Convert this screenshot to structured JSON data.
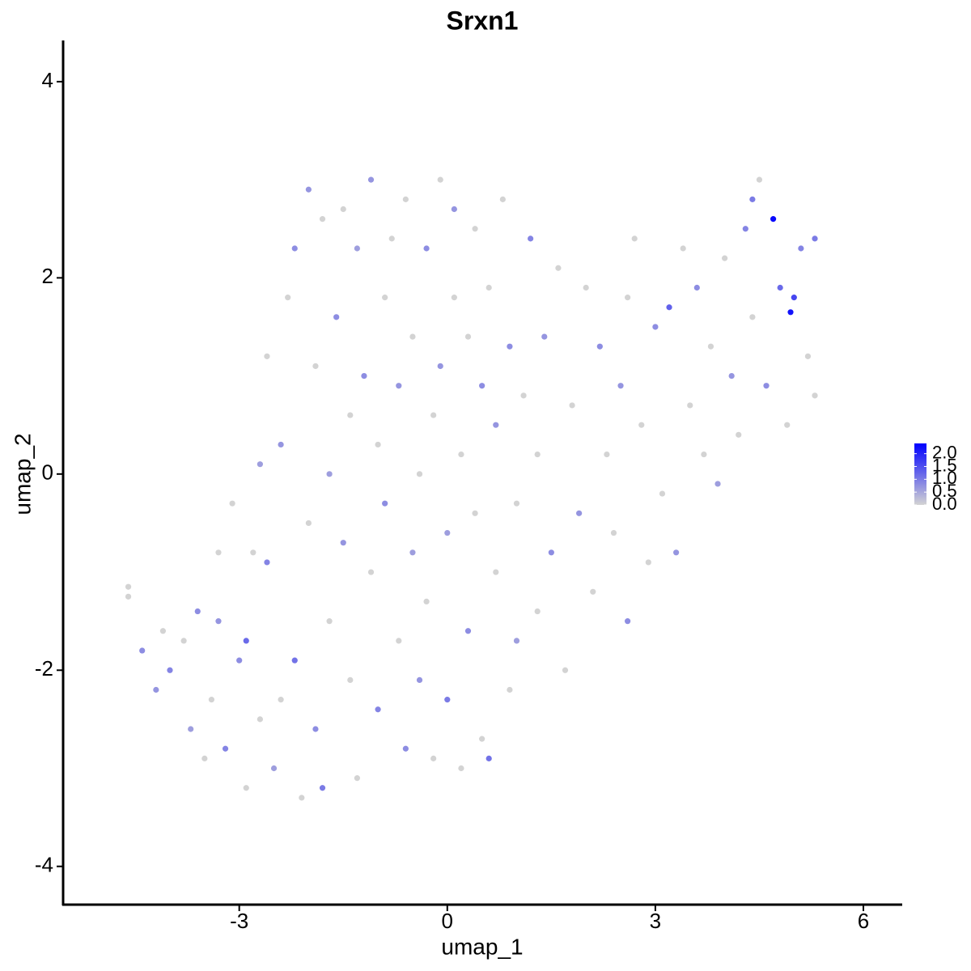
{
  "chart_data": {
    "type": "scatter",
    "title": "Srxn1",
    "xlabel": "umap_1",
    "ylabel": "umap_2",
    "xlim": [
      -5.54,
      6.56
    ],
    "ylim": [
      -4.39,
      4.42
    ],
    "xticks": [
      -3,
      0,
      3,
      6
    ],
    "yticks": [
      -4,
      -2,
      0,
      2,
      4
    ],
    "color_scale": {
      "low": "#d3d3d3",
      "high": "#0000ff",
      "limits": [
        0,
        2.4
      ],
      "ticks": [
        {
          "value": 0,
          "label": "0.0"
        },
        {
          "value": 0.5,
          "label": "0.5"
        },
        {
          "value": 1,
          "label": "1.0"
        },
        {
          "value": 1.5,
          "label": "1.5"
        },
        {
          "value": 2,
          "label": "2.0"
        }
      ]
    },
    "x": [
      -4.6,
      -4.6,
      -4.4,
      -4.2,
      -4.0,
      -3.8,
      -3.7,
      -3.6,
      -3.5,
      -3.4,
      -3.3,
      -3.2,
      -3.1,
      -3.0,
      -2.9,
      -2.9,
      -2.8,
      -2.7,
      -2.6,
      -2.6,
      -2.5,
      -2.4,
      -2.4,
      -2.3,
      -2.2,
      -2.2,
      -2.1,
      -2.0,
      -2.0,
      -1.9,
      -1.9,
      -1.8,
      -1.8,
      -1.7,
      -1.7,
      -1.6,
      -1.5,
      -1.5,
      -1.4,
      -1.4,
      -1.3,
      -1.3,
      -1.2,
      -1.1,
      -1.1,
      -1.0,
      -1.0,
      -0.9,
      -0.9,
      -0.8,
      -0.7,
      -0.7,
      -0.6,
      -0.6,
      -0.5,
      -0.5,
      -0.4,
      -0.4,
      -0.3,
      -0.3,
      -0.2,
      -0.2,
      -0.1,
      -0.1,
      0.0,
      0.0,
      0.1,
      0.1,
      0.2,
      0.2,
      0.3,
      0.3,
      0.4,
      0.4,
      0.5,
      0.5,
      0.6,
      0.6,
      0.7,
      0.7,
      0.8,
      0.9,
      0.9,
      1.0,
      1.0,
      1.1,
      1.2,
      1.3,
      1.3,
      1.4,
      1.5,
      1.6,
      1.7,
      1.8,
      1.9,
      2.0,
      2.1,
      2.2,
      2.3,
      2.4,
      2.5,
      2.6,
      2.6,
      2.7,
      2.8,
      2.9,
      3.0,
      3.1,
      3.2,
      3.3,
      3.4,
      3.5,
      3.6,
      3.7,
      3.8,
      3.9,
      4.0,
      4.1,
      4.2,
      4.3,
      4.4,
      4.5,
      4.6,
      4.7,
      4.8,
      4.9,
      4.95,
      5.0,
      5.1,
      5.2,
      5.3,
      5.3,
      4.4,
      -2.7,
      -3.3,
      -4.1
    ],
    "y": [
      -1.25,
      -1.15,
      -1.8,
      -2.2,
      -2.0,
      -1.7,
      -2.6,
      -1.4,
      -2.9,
      -2.3,
      -1.5,
      -2.8,
      -0.3,
      -1.9,
      -3.2,
      -1.7,
      -0.8,
      -2.5,
      -0.9,
      1.2,
      -3.0,
      -2.3,
      0.3,
      1.8,
      -1.9,
      2.3,
      -3.3,
      -0.5,
      2.9,
      1.1,
      -2.6,
      -3.2,
      2.6,
      0.0,
      -1.5,
      1.6,
      2.7,
      -0.7,
      -2.1,
      0.6,
      2.3,
      -3.1,
      1.0,
      -1.0,
      3.0,
      0.3,
      -2.4,
      1.8,
      -0.3,
      2.4,
      -1.7,
      0.9,
      -2.8,
      2.8,
      -0.8,
      1.4,
      0.0,
      -2.1,
      2.3,
      -1.3,
      0.6,
      -2.9,
      1.1,
      3.0,
      -0.6,
      -2.3,
      1.8,
      2.7,
      -3.0,
      0.2,
      -1.6,
      1.4,
      -0.4,
      2.5,
      -2.7,
      0.9,
      -2.9,
      1.9,
      -1.0,
      0.5,
      2.8,
      -2.2,
      1.3,
      -0.3,
      -1.7,
      0.8,
      2.4,
      -1.4,
      0.2,
      1.4,
      -0.8,
      2.1,
      -2.0,
      0.7,
      -0.4,
      1.9,
      -1.2,
      1.3,
      0.2,
      -0.6,
      0.9,
      1.8,
      -1.5,
      2.4,
      0.5,
      -0.9,
      1.5,
      -0.2,
      1.7,
      -0.8,
      2.3,
      0.7,
      1.9,
      0.2,
      1.3,
      -0.1,
      2.2,
      1.0,
      0.4,
      2.5,
      1.6,
      3.0,
      0.9,
      2.6,
      1.9,
      0.5,
      1.65,
      1.8,
      2.3,
      1.2,
      2.4,
      0.8,
      2.8,
      0.1,
      -0.8,
      -1.6
    ],
    "expression": [
      0,
      0,
      0.8,
      0.7,
      0.9,
      0,
      0.6,
      0.8,
      0,
      0,
      0.7,
      0.9,
      0,
      0.8,
      0,
      1.2,
      0,
      0,
      0.9,
      0,
      0.6,
      0,
      0.7,
      0,
      1.1,
      0.8,
      0,
      0,
      0.7,
      0,
      0.8,
      1.0,
      0,
      0.6,
      0,
      0.8,
      0,
      0.7,
      0,
      0,
      0.6,
      0,
      0.8,
      0,
      0.7,
      0,
      0.9,
      0,
      0.8,
      0,
      0,
      0.7,
      0.8,
      0,
      0.6,
      0,
      0,
      0.7,
      0.8,
      0,
      0,
      0,
      0.7,
      0,
      0.6,
      1.0,
      0,
      0.7,
      0,
      0,
      0.8,
      0,
      0,
      0,
      0,
      0.8,
      1.1,
      0,
      0,
      0.7,
      0,
      0,
      0.8,
      0,
      0.6,
      0,
      0.9,
      0,
      0,
      0.7,
      0.8,
      0,
      0,
      0,
      0.7,
      0,
      0,
      0.8,
      0,
      0,
      0.7,
      0,
      0.8,
      0,
      0,
      0,
      0.8,
      0,
      1.3,
      0.7,
      0,
      0,
      0.8,
      0,
      0,
      0.6,
      0,
      0.7,
      0,
      0.9,
      0,
      0,
      0.8,
      2.3,
      1.2,
      0,
      2.2,
      1.6,
      0.9,
      0,
      1.0,
      0,
      1.0,
      0.6,
      0,
      0
    ]
  }
}
